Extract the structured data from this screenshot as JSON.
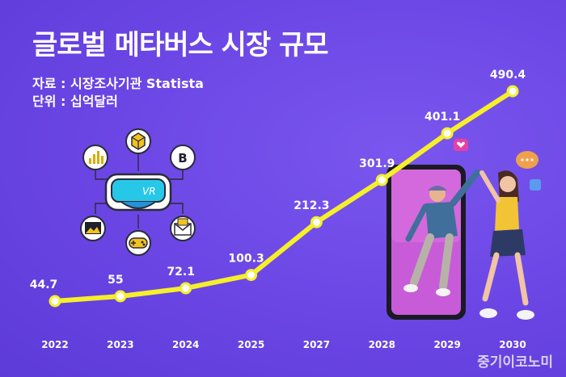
{
  "title": "글로벌 메타버스 시장 규모",
  "source_line": "자료 : 시장조사기관 Statista",
  "unit_line": "단위 : 십억달러",
  "watermark": "중기이코노미",
  "colors": {
    "background": "#6b45e6",
    "line": "#f5ef2a",
    "marker": "#ffffff"
  },
  "illustration": {
    "vr_icon": "vr-headset-icon",
    "vr_label": "VR",
    "icons": [
      "bar-chart-icon",
      "cube-icon",
      "bitcoin-icon",
      "image-icon",
      "gamepad-icon",
      "mail-icon"
    ],
    "bitcoin_symbol": "B",
    "people": "two people high-fiving through a smartphone screen"
  },
  "chart_data": {
    "type": "line",
    "title": "글로벌 메타버스 시장 규모",
    "categories": [
      "2022",
      "2023",
      "2024",
      "2025",
      "2027",
      "2028",
      "2029",
      "2030"
    ],
    "series": [
      {
        "values": [
          44.7,
          55,
          72.1,
          100.3,
          212.3,
          301.9,
          401.1,
          490.4
        ]
      }
    ],
    "value_labels": [
      "44.7",
      "55",
      "72.1",
      "100.3",
      "212.3",
      "301.9",
      "401.1",
      "490.4"
    ],
    "ylim": [
      44.7,
      490.4
    ],
    "grid": false,
    "legend": "none"
  }
}
